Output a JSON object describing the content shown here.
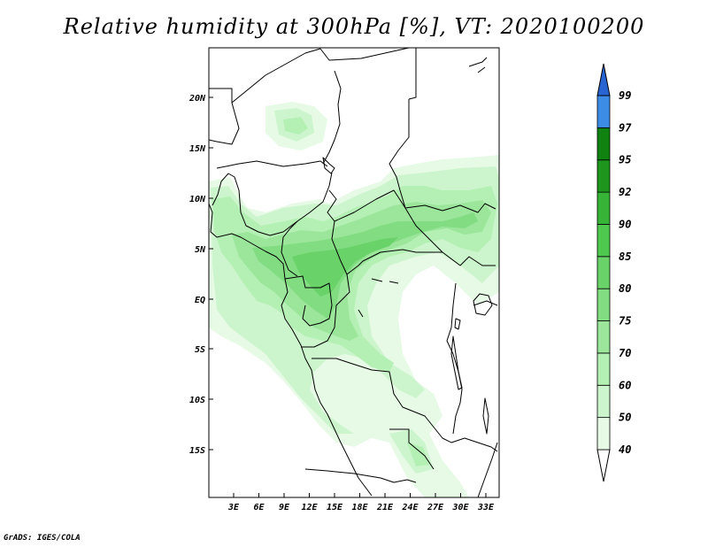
{
  "title": "Relative humidity at 300hPa [%], VT: 2020100200",
  "footer": "GrADS: IGES/COLA",
  "map": {
    "variable": "Relative humidity",
    "level": "300hPa",
    "units": "%",
    "valid_time": "2020100200",
    "lat_ticks": [
      "20N",
      "15N",
      "10N",
      "5N",
      "EQ",
      "5S",
      "10S",
      "15S"
    ],
    "lon_ticks": [
      "3E",
      "6E",
      "9E",
      "12E",
      "15E",
      "18E",
      "21E",
      "24E",
      "27E",
      "30E",
      "33E"
    ],
    "lat_range": [
      -20,
      25
    ],
    "lon_range": [
      0,
      35
    ]
  },
  "colorbar": {
    "labels": [
      "40",
      "50",
      "60",
      "70",
      "75",
      "80",
      "85",
      "90",
      "92",
      "95",
      "97",
      "99"
    ],
    "colors": [
      "#e6fae6",
      "#cdf5cd",
      "#b4f0b4",
      "#9be69b",
      "#82dc82",
      "#69d269",
      "#4fc84f",
      "#37b437",
      "#1e961e",
      "#0f820f",
      "#3c8ce6",
      "#2864d2",
      "#1446b4"
    ],
    "lower_color": "#ffffff"
  }
}
